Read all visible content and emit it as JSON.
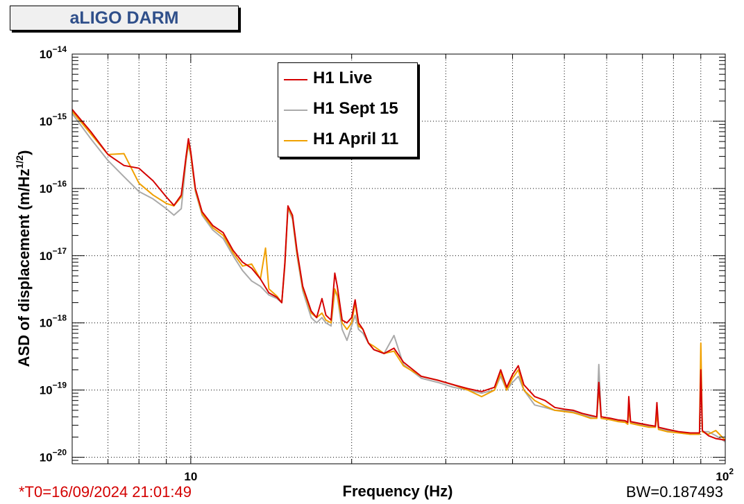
{
  "title": "aLIGO DARM",
  "stamp": "*T0=16/09/2024 21:01:49",
  "bandwidth": "BW=0.187493",
  "colors": {
    "h1_live": "#d40000",
    "h1_sept15": "#aaaaaa",
    "h1_april11": "#f0a000",
    "title": "#2f4f8a",
    "stamp": "#d40000"
  },
  "chart_data": {
    "type": "line",
    "title": "aLIGO DARM",
    "xlabel": "Frequency (Hz)",
    "ylabel": "ASD of displacement (m/Hz^{1/2})",
    "xscale": "log",
    "yscale": "log",
    "xlim": [
      6,
      100
    ],
    "ylim": [
      8e-21,
      1e-14
    ],
    "grid": true,
    "legend_position": "top-center",
    "x_ticks": [
      {
        "value": 10,
        "base": "10",
        "exp": ""
      },
      {
        "value": 100,
        "base": "10",
        "exp": "2"
      }
    ],
    "y_ticks": [
      {
        "value": 1e-14,
        "base": "10",
        "exp": "−14"
      },
      {
        "value": 1e-15,
        "base": "10",
        "exp": "−15"
      },
      {
        "value": 1e-16,
        "base": "10",
        "exp": "−16"
      },
      {
        "value": 1e-17,
        "base": "10",
        "exp": "−17"
      },
      {
        "value": 1e-18,
        "base": "10",
        "exp": "−18"
      },
      {
        "value": 1e-19,
        "base": "10",
        "exp": "−19"
      },
      {
        "value": 1e-20,
        "base": "10",
        "exp": "−20"
      }
    ],
    "series": [
      {
        "name": "H1 Live",
        "color": "#d40000",
        "points": [
          [
            6.0,
            1.5e-15
          ],
          [
            6.5,
            7e-16
          ],
          [
            7.0,
            3.2e-16
          ],
          [
            7.5,
            2.2e-16
          ],
          [
            8.0,
            2e-16
          ],
          [
            8.5,
            1.3e-16
          ],
          [
            9.0,
            7.5e-17
          ],
          [
            9.3,
            5.6e-17
          ],
          [
            9.6,
            8e-17
          ],
          [
            9.8,
            3e-16
          ],
          [
            9.9,
            5.5e-16
          ],
          [
            10.0,
            3.5e-16
          ],
          [
            10.2,
            1e-16
          ],
          [
            10.5,
            4.5e-17
          ],
          [
            11.0,
            2.8e-17
          ],
          [
            11.5,
            2.2e-17
          ],
          [
            12.0,
            1.2e-17
          ],
          [
            12.5,
            8e-18
          ],
          [
            13.0,
            6.5e-18
          ],
          [
            13.5,
            4.5e-18
          ],
          [
            14.0,
            2.8e-18
          ],
          [
            14.5,
            2.4e-18
          ],
          [
            14.8,
            2e-18
          ],
          [
            15.0,
            8e-18
          ],
          [
            15.2,
            5.5e-17
          ],
          [
            15.5,
            4e-17
          ],
          [
            15.8,
            1.2e-17
          ],
          [
            16.2,
            3.5e-18
          ],
          [
            16.8,
            1.5e-18
          ],
          [
            17.2,
            1.2e-18
          ],
          [
            17.6,
            2.3e-18
          ],
          [
            17.9,
            1.3e-18
          ],
          [
            18.3,
            1.1e-18
          ],
          [
            18.6,
            5.5e-18
          ],
          [
            18.8,
            3.5e-18
          ],
          [
            19.2,
            1.1e-18
          ],
          [
            19.6,
            1e-18
          ],
          [
            20.0,
            1.2e-18
          ],
          [
            20.3,
            2.2e-18
          ],
          [
            20.6,
            1e-18
          ],
          [
            21.0,
            8e-19
          ],
          [
            21.5,
            5e-19
          ],
          [
            22.0,
            4e-19
          ],
          [
            23.0,
            3.5e-19
          ],
          [
            24.0,
            4.2e-19
          ],
          [
            25.0,
            2.6e-19
          ],
          [
            27.0,
            1.6e-19
          ],
          [
            29.0,
            1.4e-19
          ],
          [
            31.0,
            1.2e-19
          ],
          [
            33.0,
            1.05e-19
          ],
          [
            35.0,
            9.5e-20
          ],
          [
            37.0,
            1.1e-19
          ],
          [
            38.0,
            2e-19
          ],
          [
            39.0,
            1.1e-19
          ],
          [
            40.0,
            1.7e-19
          ],
          [
            41.0,
            2.3e-19
          ],
          [
            42.0,
            1.2e-19
          ],
          [
            44.0,
            8e-20
          ],
          [
            46.0,
            7e-20
          ],
          [
            48.0,
            5.5e-20
          ],
          [
            50.0,
            5.2e-20
          ],
          [
            52.0,
            5e-20
          ],
          [
            54.0,
            4.5e-20
          ],
          [
            56.0,
            4.2e-20
          ],
          [
            57.5,
            4e-20
          ],
          [
            58.0,
            1.3e-19
          ],
          [
            58.6,
            4e-20
          ],
          [
            61.0,
            3.8e-20
          ],
          [
            63.0,
            3.6e-20
          ],
          [
            65.0,
            3.5e-20
          ],
          [
            65.7,
            3.3e-20
          ],
          [
            66.0,
            8e-20
          ],
          [
            66.5,
            3.4e-20
          ],
          [
            69.0,
            3.2e-20
          ],
          [
            72.0,
            3e-20
          ],
          [
            74.0,
            2.9e-20
          ],
          [
            74.5,
            6.5e-20
          ],
          [
            75.0,
            2.8e-20
          ],
          [
            78.0,
            2.6e-20
          ],
          [
            82.0,
            2.4e-20
          ],
          [
            86.0,
            2.3e-20
          ],
          [
            89.5,
            2.3e-20
          ],
          [
            90.0,
            2e-19
          ],
          [
            90.6,
            2.5e-20
          ],
          [
            93.0,
            2.1e-20
          ],
          [
            96.0,
            1.9e-20
          ],
          [
            100.0,
            1.8e-20
          ]
        ]
      },
      {
        "name": "H1 Sept 15",
        "color": "#aaaaaa",
        "points": [
          [
            6.0,
            1.3e-15
          ],
          [
            6.5,
            5.5e-16
          ],
          [
            7.0,
            2.6e-16
          ],
          [
            7.5,
            1.5e-16
          ],
          [
            8.0,
            9e-17
          ],
          [
            8.5,
            7e-17
          ],
          [
            9.0,
            5e-17
          ],
          [
            9.3,
            4e-17
          ],
          [
            9.6,
            5e-17
          ],
          [
            9.8,
            2.6e-16
          ],
          [
            9.9,
            4.5e-16
          ],
          [
            10.0,
            3e-16
          ],
          [
            10.2,
            9e-17
          ],
          [
            10.5,
            4e-17
          ],
          [
            11.0,
            2.4e-17
          ],
          [
            11.5,
            1.8e-17
          ],
          [
            12.0,
            1e-17
          ],
          [
            12.5,
            6e-18
          ],
          [
            13.0,
            4.2e-18
          ],
          [
            13.5,
            3.5e-18
          ],
          [
            14.0,
            2.6e-18
          ],
          [
            14.5,
            2.3e-18
          ],
          [
            14.8,
            2e-18
          ],
          [
            15.0,
            7e-18
          ],
          [
            15.2,
            5e-17
          ],
          [
            15.5,
            3.5e-17
          ],
          [
            15.8,
            1e-17
          ],
          [
            16.2,
            3e-18
          ],
          [
            16.8,
            1.2e-18
          ],
          [
            17.2,
            1e-18
          ],
          [
            17.6,
            1.2e-18
          ],
          [
            17.9,
            1e-18
          ],
          [
            18.3,
            9e-19
          ],
          [
            18.6,
            3e-18
          ],
          [
            18.8,
            2.5e-18
          ],
          [
            19.2,
            8e-19
          ],
          [
            19.6,
            5.5e-19
          ],
          [
            20.0,
            9e-19
          ],
          [
            20.3,
            1.3e-18
          ],
          [
            20.6,
            8e-19
          ],
          [
            21.0,
            7e-19
          ],
          [
            21.5,
            5e-19
          ],
          [
            22.0,
            4e-19
          ],
          [
            23.0,
            3.5e-19
          ],
          [
            24.0,
            6.5e-19
          ],
          [
            25.0,
            2.4e-19
          ],
          [
            27.0,
            1.5e-19
          ],
          [
            29.0,
            1.3e-19
          ],
          [
            31.0,
            1.1e-19
          ],
          [
            33.0,
            1e-19
          ],
          [
            35.0,
            9e-20
          ],
          [
            37.0,
            1e-19
          ],
          [
            38.0,
            1.6e-19
          ],
          [
            39.0,
            1e-19
          ],
          [
            40.0,
            1.3e-19
          ],
          [
            41.0,
            1.6e-19
          ],
          [
            42.0,
            1e-19
          ],
          [
            44.0,
            6e-20
          ],
          [
            46.0,
            5.5e-20
          ],
          [
            48.0,
            5e-20
          ],
          [
            50.0,
            5e-20
          ],
          [
            52.0,
            4.8e-20
          ],
          [
            54.0,
            4.3e-20
          ],
          [
            56.0,
            4e-20
          ],
          [
            57.5,
            4e-20
          ],
          [
            58.0,
            2.4e-19
          ],
          [
            58.6,
            4e-20
          ],
          [
            61.0,
            3.7e-20
          ],
          [
            63.0,
            3.5e-20
          ],
          [
            65.0,
            3.4e-20
          ],
          [
            65.7,
            3.2e-20
          ],
          [
            66.0,
            6e-20
          ],
          [
            66.5,
            3.3e-20
          ],
          [
            69.0,
            3.1e-20
          ],
          [
            72.0,
            2.9e-20
          ],
          [
            74.0,
            2.8e-20
          ],
          [
            74.5,
            5e-20
          ],
          [
            75.0,
            2.7e-20
          ],
          [
            78.0,
            2.5e-20
          ],
          [
            82.0,
            2.3e-20
          ],
          [
            86.0,
            2.2e-20
          ],
          [
            89.5,
            2.2e-20
          ],
          [
            90.0,
            2.6e-19
          ],
          [
            90.6,
            2.4e-20
          ],
          [
            93.0,
            2.4e-20
          ],
          [
            96.0,
            2.1e-20
          ],
          [
            100.0,
            1.7e-20
          ]
        ]
      },
      {
        "name": "H1 April 11",
        "color": "#f0a000",
        "points": [
          [
            6.0,
            1.4e-15
          ],
          [
            6.5,
            6.5e-16
          ],
          [
            7.0,
            3.2e-16
          ],
          [
            7.5,
            3.3e-16
          ],
          [
            8.0,
            1.2e-16
          ],
          [
            8.5,
            8e-17
          ],
          [
            9.0,
            6e-17
          ],
          [
            9.3,
            5.5e-17
          ],
          [
            9.6,
            7.5e-17
          ],
          [
            9.8,
            2.8e-16
          ],
          [
            9.9,
            4.8e-16
          ],
          [
            10.0,
            3.2e-16
          ],
          [
            10.2,
            9.5e-17
          ],
          [
            10.5,
            4.2e-17
          ],
          [
            11.0,
            2.6e-17
          ],
          [
            11.5,
            2e-17
          ],
          [
            12.0,
            1.1e-17
          ],
          [
            12.5,
            7e-18
          ],
          [
            13.0,
            7.5e-18
          ],
          [
            13.5,
            4.5e-18
          ],
          [
            13.8,
            1.3e-17
          ],
          [
            14.0,
            3.2e-18
          ],
          [
            14.5,
            2.5e-18
          ],
          [
            14.8,
            2e-18
          ],
          [
            15.0,
            7.5e-18
          ],
          [
            15.2,
            5.2e-17
          ],
          [
            15.5,
            3.8e-17
          ],
          [
            15.8,
            1.1e-17
          ],
          [
            16.2,
            3.3e-18
          ],
          [
            16.8,
            1.4e-18
          ],
          [
            17.2,
            1.2e-18
          ],
          [
            17.6,
            1.4e-18
          ],
          [
            17.9,
            1.1e-18
          ],
          [
            18.3,
            1e-18
          ],
          [
            18.6,
            3.2e-18
          ],
          [
            18.8,
            2.6e-18
          ],
          [
            19.2,
            1e-18
          ],
          [
            19.6,
            8e-19
          ],
          [
            20.0,
            1e-18
          ],
          [
            20.3,
            2e-18
          ],
          [
            20.6,
            9e-19
          ],
          [
            21.0,
            8e-19
          ],
          [
            21.5,
            5e-19
          ],
          [
            22.0,
            4.5e-19
          ],
          [
            23.0,
            3.5e-19
          ],
          [
            24.0,
            3.8e-19
          ],
          [
            25.0,
            2.3e-19
          ],
          [
            27.0,
            1.6e-19
          ],
          [
            29.0,
            1.4e-19
          ],
          [
            31.0,
            1.2e-19
          ],
          [
            33.0,
            1e-19
          ],
          [
            35.0,
            8e-20
          ],
          [
            37.0,
            1e-19
          ],
          [
            38.0,
            1.8e-19
          ],
          [
            39.0,
            1e-19
          ],
          [
            40.0,
            1.5e-19
          ],
          [
            41.0,
            2e-19
          ],
          [
            42.0,
            1e-19
          ],
          [
            44.0,
            7e-20
          ],
          [
            46.0,
            5.8e-20
          ],
          [
            48.0,
            5e-20
          ],
          [
            50.0,
            4.8e-20
          ],
          [
            52.0,
            4.6e-20
          ],
          [
            54.0,
            4.2e-20
          ],
          [
            56.0,
            3.8e-20
          ],
          [
            57.5,
            3.8e-20
          ],
          [
            58.0,
            1.1e-19
          ],
          [
            58.6,
            3.8e-20
          ],
          [
            61.0,
            3.6e-20
          ],
          [
            63.0,
            3.4e-20
          ],
          [
            65.0,
            3.3e-20
          ],
          [
            65.7,
            3.1e-20
          ],
          [
            66.0,
            5.5e-20
          ],
          [
            66.5,
            3.2e-20
          ],
          [
            69.0,
            3e-20
          ],
          [
            72.0,
            2.8e-20
          ],
          [
            74.0,
            2.8e-20
          ],
          [
            74.5,
            4.5e-20
          ],
          [
            75.0,
            2.6e-20
          ],
          [
            78.0,
            2.4e-20
          ],
          [
            82.0,
            2.3e-20
          ],
          [
            86.0,
            2.2e-20
          ],
          [
            89.5,
            2.2e-20
          ],
          [
            90.0,
            5e-19
          ],
          [
            90.6,
            2.4e-20
          ],
          [
            93.0,
            2.2e-20
          ],
          [
            96.0,
            2.5e-20
          ],
          [
            100.0,
            1.8e-20
          ]
        ]
      }
    ]
  }
}
